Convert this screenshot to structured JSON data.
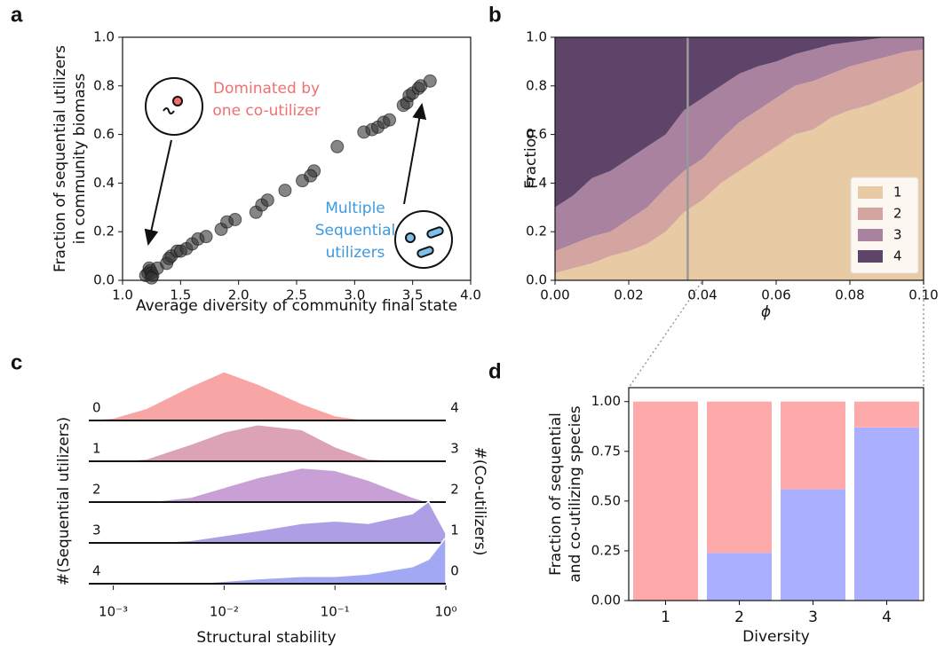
{
  "chart_data": [
    {
      "panel": "a",
      "type": "scatter",
      "color": "#333333",
      "xlabel": "Average diversity of community final state",
      "ylabel": [
        "Fraction of sequential utilizers",
        "in community biomass"
      ],
      "x": [
        1.2,
        1.22,
        1.23,
        1.24,
        1.25,
        1.26,
        1.3,
        1.38,
        1.4,
        1.42,
        1.47,
        1.55,
        1.6,
        1.65,
        1.72,
        1.85,
        1.9,
        1.97,
        2.15,
        2.2,
        2.25,
        2.4,
        2.55,
        2.65,
        2.62,
        2.85,
        3.08,
        3.15,
        3.2,
        3.25,
        3.3,
        3.42,
        3.45,
        3.47,
        3.5,
        3.55,
        3.57,
        3.65,
        1.5,
        1.25
      ],
      "y": [
        0.02,
        0.03,
        0.05,
        0.04,
        0.03,
        0.02,
        0.05,
        0.07,
        0.09,
        0.1,
        0.12,
        0.13,
        0.15,
        0.17,
        0.18,
        0.21,
        0.24,
        0.25,
        0.28,
        0.31,
        0.33,
        0.37,
        0.41,
        0.45,
        0.43,
        0.55,
        0.61,
        0.62,
        0.63,
        0.65,
        0.66,
        0.72,
        0.73,
        0.76,
        0.77,
        0.79,
        0.8,
        0.82,
        0.12,
        0.01
      ],
      "xlim": [
        1,
        4
      ],
      "ylim": [
        0,
        1
      ],
      "xticks": [
        {
          "value": 1,
          "label": "1.0"
        },
        {
          "value": 1.5,
          "label": "1.5"
        },
        {
          "value": 2,
          "label": "2.0"
        },
        {
          "value": 2.5,
          "label": "2.5"
        },
        {
          "value": 3,
          "label": "3.0"
        },
        {
          "value": 3.5,
          "label": "3.5"
        },
        {
          "value": 4,
          "label": "4.0"
        }
      ],
      "yticks": [
        {
          "value": 0,
          "label": "0.0"
        },
        {
          "value": 0.2,
          "label": "0.2"
        },
        {
          "value": 0.4,
          "label": "0.4"
        },
        {
          "value": 0.6,
          "label": "0.6"
        },
        {
          "value": 0.8,
          "label": "0.8"
        },
        {
          "value": 1,
          "label": "1.0"
        }
      ],
      "annotations": [
        {
          "lines": [
            "Dominated by",
            "one co-utilizer"
          ],
          "color": "#f07070"
        },
        {
          "lines": [
            "Multiple",
            "Sequential",
            "utilizers"
          ],
          "color": "#3d9ae0"
        }
      ]
    },
    {
      "panel": "b",
      "type": "stacked-area",
      "xlabel": "ϕ",
      "ylabel": "Fraction",
      "legend": "lower right",
      "vline": 0.036,
      "x": [
        0,
        0.005,
        0.01,
        0.015,
        0.02,
        0.025,
        0.03,
        0.035,
        0.04,
        0.045,
        0.05,
        0.055,
        0.06,
        0.065,
        0.07,
        0.075,
        0.08,
        0.085,
        0.09,
        0.095,
        0.1
      ],
      "series": [
        {
          "name": "1",
          "color": "#e8cba4",
          "values": [
            0.03,
            0.05,
            0.07,
            0.1,
            0.12,
            0.15,
            0.2,
            0.28,
            0.33,
            0.4,
            0.45,
            0.5,
            0.55,
            0.6,
            0.62,
            0.67,
            0.7,
            0.72,
            0.75,
            0.78,
            0.82
          ]
        },
        {
          "name": "2",
          "color": "#d4a5a0",
          "values": [
            0.09,
            0.1,
            0.11,
            0.1,
            0.13,
            0.15,
            0.18,
            0.17,
            0.17,
            0.18,
            0.2,
            0.2,
            0.2,
            0.2,
            0.2,
            0.18,
            0.18,
            0.18,
            0.17,
            0.16,
            0.13
          ]
        },
        {
          "name": "3",
          "color": "#a9829f",
          "values": [
            0.18,
            0.2,
            0.24,
            0.25,
            0.25,
            0.25,
            0.22,
            0.25,
            0.25,
            0.22,
            0.2,
            0.18,
            0.15,
            0.13,
            0.13,
            0.12,
            0.1,
            0.09,
            0.08,
            0.06,
            0.05
          ]
        },
        {
          "name": "4",
          "color": "#5e4468",
          "values": [
            0.7,
            0.65,
            0.58,
            0.55,
            0.5,
            0.45,
            0.4,
            0.3,
            0.25,
            0.2,
            0.15,
            0.12,
            0.1,
            0.07,
            0.05,
            0.03,
            0.02,
            0.01,
            0,
            0,
            0
          ]
        }
      ],
      "xlim": [
        0,
        0.1
      ],
      "ylim": [
        0,
        1
      ],
      "xticks": [
        {
          "value": 0,
          "label": "0.00"
        },
        {
          "value": 0.02,
          "label": "0.02"
        },
        {
          "value": 0.04,
          "label": "0.04"
        },
        {
          "value": 0.06,
          "label": "0.06"
        },
        {
          "value": 0.08,
          "label": "0.08"
        },
        {
          "value": 0.1,
          "label": "0.10"
        }
      ],
      "yticks": [
        {
          "value": 0,
          "label": "0.0"
        },
        {
          "value": 0.2,
          "label": "0.2"
        },
        {
          "value": 0.4,
          "label": "0.4"
        },
        {
          "value": 0.6,
          "label": "0.6"
        },
        {
          "value": 0.8,
          "label": "0.8"
        },
        {
          "value": 1,
          "label": "1.0"
        }
      ]
    },
    {
      "panel": "c",
      "type": "ridgeline",
      "xscale": "log",
      "xlabel": "Structural stability",
      "ylabel": "#(Sequential utilizers)",
      "y2label": "#(Co-utilizers)",
      "x": [
        0.0005,
        0.001,
        0.002,
        0.005,
        0.01,
        0.02,
        0.05,
        0.1,
        0.2,
        0.5,
        0.7,
        1
      ],
      "series": [
        {
          "name": "0",
          "right_label": "4",
          "color": "#f8a5a5",
          "values": [
            0,
            0.05,
            0.25,
            0.7,
            1.0,
            0.75,
            0.35,
            0.1,
            0,
            0,
            0,
            0
          ]
        },
        {
          "name": "1",
          "right_label": "3",
          "color": "#dca3b6",
          "values": [
            0,
            0,
            0.05,
            0.35,
            0.6,
            0.75,
            0.65,
            0.3,
            0.05,
            0,
            0,
            0
          ]
        },
        {
          "name": "2",
          "right_label": "2",
          "color": "#c8a0d6",
          "values": [
            0,
            0,
            0,
            0.1,
            0.3,
            0.5,
            0.7,
            0.65,
            0.45,
            0.1,
            0,
            0
          ]
        },
        {
          "name": "3",
          "right_label": "1",
          "color": "#ae9ee6",
          "values": [
            0,
            0,
            0,
            0.05,
            0.15,
            0.25,
            0.4,
            0.45,
            0.4,
            0.6,
            0.85,
            0.2
          ]
        },
        {
          "name": "4",
          "right_label": "0",
          "color": "#a3a8f5",
          "values": [
            0,
            0,
            0,
            0,
            0.05,
            0.1,
            0.15,
            0.15,
            0.2,
            0.35,
            0.5,
            0.95
          ]
        }
      ],
      "xlim": [
        0.0005,
        1
      ],
      "xticks": [
        {
          "value": 0.001,
          "label": "10⁻³"
        },
        {
          "value": 0.01,
          "label": "10⁻²"
        },
        {
          "value": 0.1,
          "label": "10⁻¹"
        },
        {
          "value": 1,
          "label": "10⁰"
        }
      ]
    },
    {
      "panel": "d",
      "type": "stacked-bar",
      "xlabel": "Diversity",
      "ylabel": [
        "Fraction of sequential",
        "and co-utilizing species"
      ],
      "categories": [
        "1",
        "2",
        "3",
        "4"
      ],
      "series": [
        {
          "color": "#aab0ff",
          "values": [
            0,
            0.24,
            0.56,
            0.87
          ]
        },
        {
          "color": "#ffaaaa",
          "values": [
            1,
            0.76,
            0.44,
            0.13
          ]
        }
      ],
      "ylim": [
        0,
        1.07
      ],
      "yticks": [
        {
          "value": 0,
          "label": "0.00"
        },
        {
          "value": 0.25,
          "label": "0.25"
        },
        {
          "value": 0.5,
          "label": "0.50"
        },
        {
          "value": 0.75,
          "label": "0.75"
        },
        {
          "value": 1,
          "label": "1.00"
        }
      ]
    }
  ]
}
